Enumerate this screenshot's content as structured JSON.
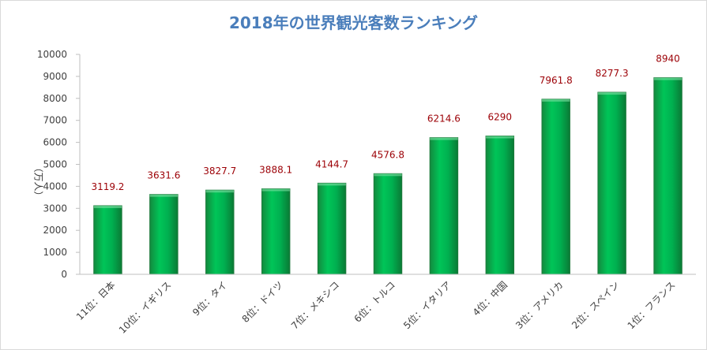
{
  "chart_data": {
    "type": "bar",
    "title": "2018年の世界観光客数ランキング",
    "ylabel": "（万人）",
    "xlabel": "",
    "ylim": [
      0,
      10000
    ],
    "yticks": [
      "0",
      "1000",
      "2000",
      "3000",
      "4000",
      "5000",
      "6000",
      "7000",
      "8000",
      "9000",
      "10000"
    ],
    "categories": [
      "11位：日本",
      "10位：イギリス",
      "9位：タイ",
      "8位：ドイツ",
      "7位：メキシコ",
      "6位：トルコ",
      "5位：イタリア",
      "4位：中国",
      "3位：アメリカ",
      "2位：スペイン",
      "1位：フランス"
    ],
    "values": [
      3119.2,
      3631.6,
      3827.7,
      3888.1,
      4144.7,
      4576.8,
      6214.6,
      6290,
      7961.8,
      8277.3,
      8940
    ],
    "data_labels": [
      "3119.2",
      "3631.6",
      "3827.7",
      "3888.1",
      "4144.7",
      "4576.8",
      "6214.6",
      "6290",
      "7961.8",
      "8277.3",
      "8940"
    ],
    "grid": false,
    "legend": "none",
    "colors": {
      "bar": "#00b050",
      "bar_edge": "#1e7a3c",
      "data_label": "#9c0006",
      "title": "#4a7ebb"
    }
  }
}
